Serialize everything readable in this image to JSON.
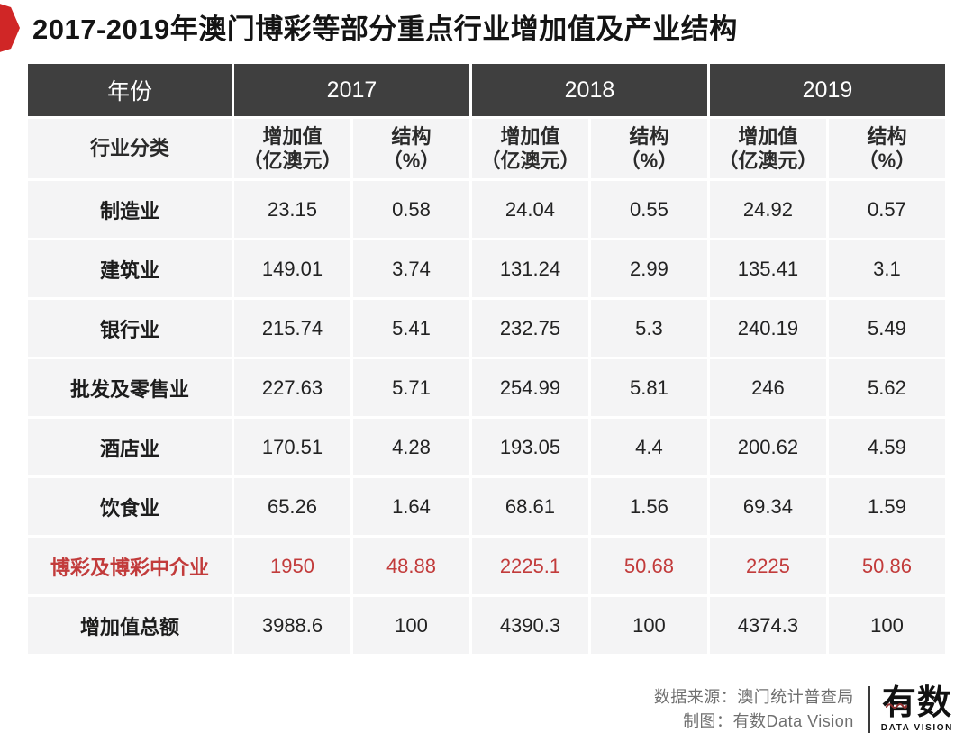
{
  "title": "2017-2019年澳门博彩等部分重点行业增加值及产业结构",
  "colors": {
    "accent_red": "#d02626",
    "highlight_red": "#c23b3b",
    "header_dark": "#3f3f3f",
    "cell_bg": "#f4f4f5"
  },
  "table": {
    "corner_label": "年份",
    "row_header_label": "行业分类",
    "years": [
      "2017",
      "2018",
      "2019"
    ],
    "value_header": "增加值\n（亿澳元）",
    "share_header": "结构\n（%）",
    "rows": [
      {
        "label": "制造业",
        "highlight": false,
        "values": [
          "23.15",
          "0.58",
          "24.04",
          "0.55",
          "24.92",
          "0.57"
        ]
      },
      {
        "label": "建筑业",
        "highlight": false,
        "values": [
          "149.01",
          "3.74",
          "131.24",
          "2.99",
          "135.41",
          "3.1"
        ]
      },
      {
        "label": "银行业",
        "highlight": false,
        "values": [
          "215.74",
          "5.41",
          "232.75",
          "5.3",
          "240.19",
          "5.49"
        ]
      },
      {
        "label": "批发及零售业",
        "highlight": false,
        "values": [
          "227.63",
          "5.71",
          "254.99",
          "5.81",
          "246",
          "5.62"
        ]
      },
      {
        "label": "酒店业",
        "highlight": false,
        "values": [
          "170.51",
          "4.28",
          "193.05",
          "4.4",
          "200.62",
          "4.59"
        ]
      },
      {
        "label": "饮食业",
        "highlight": false,
        "values": [
          "65.26",
          "1.64",
          "68.61",
          "1.56",
          "69.34",
          "1.59"
        ]
      },
      {
        "label": "博彩及博彩中介业",
        "highlight": true,
        "values": [
          "1950",
          "48.88",
          "2225.1",
          "50.68",
          "2225",
          "50.86"
        ]
      },
      {
        "label": "增加值总额",
        "highlight": false,
        "values": [
          "3988.6",
          "100",
          "4390.3",
          "100",
          "4374.3",
          "100"
        ]
      }
    ]
  },
  "footer": {
    "source_line": "数据来源：澳门统计普查局",
    "credit_line": "制图：有数Data Vision",
    "logo_cn": "有数",
    "logo_en": "DATA VISION"
  },
  "chart_data": {
    "type": "table",
    "title": "2017-2019年澳门博彩等部分重点行业增加值及产业结构",
    "column_groups": [
      "2017",
      "2018",
      "2019"
    ],
    "columns": [
      "行业分类",
      "2017 增加值（亿澳元）",
      "2017 结构（%）",
      "2018 增加值（亿澳元）",
      "2018 结构（%）",
      "2019 增加值（亿澳元）",
      "2019 结构（%）"
    ],
    "rows": [
      [
        "制造业",
        23.15,
        0.58,
        24.04,
        0.55,
        24.92,
        0.57
      ],
      [
        "建筑业",
        149.01,
        3.74,
        131.24,
        2.99,
        135.41,
        3.1
      ],
      [
        "银行业",
        215.74,
        5.41,
        232.75,
        5.3,
        240.19,
        5.49
      ],
      [
        "批发及零售业",
        227.63,
        5.71,
        254.99,
        5.81,
        246,
        5.62
      ],
      [
        "酒店业",
        170.51,
        4.28,
        193.05,
        4.4,
        200.62,
        4.59
      ],
      [
        "饮食业",
        65.26,
        1.64,
        68.61,
        1.56,
        69.34,
        1.59
      ],
      [
        "博彩及博彩中介业",
        1950,
        48.88,
        2225.1,
        50.68,
        2225,
        50.86
      ],
      [
        "增加值总额",
        3988.6,
        100,
        4390.3,
        100,
        4374.3,
        100
      ]
    ],
    "notes": "博彩及博彩中介业 row rendered in red; source: 澳门统计普查局; credit: 有数Data Vision"
  }
}
